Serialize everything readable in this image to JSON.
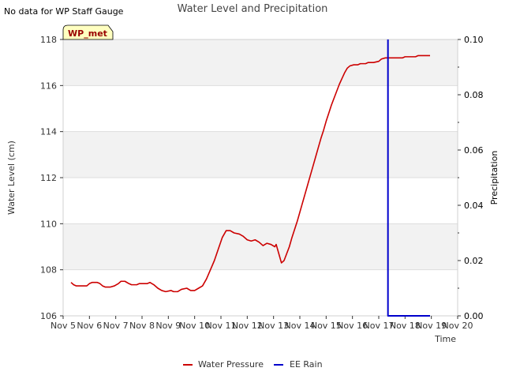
{
  "page_note": "No data for WP Staff Gauge",
  "chart_data": {
    "type": "line",
    "title": "Water Level and Precipitation",
    "xlabel": "Time",
    "ylabel_left": "Water Level (cm)",
    "ylabel_right": "Precipitation",
    "badge": "WP_met",
    "x_ticks": [
      "Nov 5",
      "Nov 6",
      "Nov 7",
      "Nov 8",
      "Nov 9",
      "Nov 10",
      "Nov 11",
      "Nov 12",
      "Nov 13",
      "Nov 14",
      "Nov 15",
      "Nov 16",
      "Nov 17",
      "Nov 18",
      "Nov 19",
      "Nov 20"
    ],
    "x_range": [
      5,
      20
    ],
    "y_left_range": [
      106,
      118
    ],
    "y_left_ticks": [
      "106",
      "108",
      "110",
      "112",
      "114",
      "116",
      "118"
    ],
    "y_right_range": [
      0.0,
      0.1
    ],
    "y_right_ticks": [
      "0.00",
      "0.02",
      "0.04",
      "0.06",
      "0.08",
      "0.10"
    ],
    "series": [
      {
        "name": "Water Pressure",
        "axis": "left",
        "color": "#cc0000",
        "points": [
          [
            5.3,
            107.45
          ],
          [
            5.4,
            107.35
          ],
          [
            5.5,
            107.3
          ],
          [
            5.7,
            107.3
          ],
          [
            5.9,
            107.3
          ],
          [
            6.0,
            107.4
          ],
          [
            6.1,
            107.45
          ],
          [
            6.3,
            107.45
          ],
          [
            6.4,
            107.4
          ],
          [
            6.5,
            107.3
          ],
          [
            6.6,
            107.25
          ],
          [
            6.8,
            107.25
          ],
          [
            6.95,
            107.3
          ],
          [
            7.1,
            107.4
          ],
          [
            7.2,
            107.5
          ],
          [
            7.35,
            107.5
          ],
          [
            7.5,
            107.4
          ],
          [
            7.6,
            107.35
          ],
          [
            7.8,
            107.35
          ],
          [
            7.9,
            107.4
          ],
          [
            8.0,
            107.4
          ],
          [
            8.2,
            107.4
          ],
          [
            8.3,
            107.45
          ],
          [
            8.45,
            107.35
          ],
          [
            8.6,
            107.2
          ],
          [
            8.75,
            107.1
          ],
          [
            8.9,
            107.05
          ],
          [
            9.1,
            107.1
          ],
          [
            9.2,
            107.05
          ],
          [
            9.35,
            107.05
          ],
          [
            9.5,
            107.15
          ],
          [
            9.7,
            107.2
          ],
          [
            9.85,
            107.1
          ],
          [
            10.0,
            107.1
          ],
          [
            10.15,
            107.2
          ],
          [
            10.3,
            107.3
          ],
          [
            10.45,
            107.6
          ],
          [
            10.6,
            108.0
          ],
          [
            10.75,
            108.4
          ],
          [
            10.9,
            108.9
          ],
          [
            11.05,
            109.4
          ],
          [
            11.2,
            109.7
          ],
          [
            11.35,
            109.7
          ],
          [
            11.5,
            109.6
          ],
          [
            11.7,
            109.55
          ],
          [
            11.85,
            109.45
          ],
          [
            12.0,
            109.3
          ],
          [
            12.15,
            109.25
          ],
          [
            12.3,
            109.3
          ],
          [
            12.45,
            109.2
          ],
          [
            12.6,
            109.05
          ],
          [
            12.75,
            109.15
          ],
          [
            12.9,
            109.1
          ],
          [
            13.05,
            109.0
          ],
          [
            13.1,
            109.1
          ],
          [
            13.2,
            108.7
          ],
          [
            13.3,
            108.3
          ],
          [
            13.4,
            108.4
          ],
          [
            13.5,
            108.7
          ],
          [
            13.6,
            109.0
          ],
          [
            13.7,
            109.4
          ],
          [
            13.8,
            109.75
          ],
          [
            13.9,
            110.1
          ],
          [
            14.0,
            110.5
          ],
          [
            14.1,
            110.9
          ],
          [
            14.2,
            111.3
          ],
          [
            14.3,
            111.7
          ],
          [
            14.4,
            112.1
          ],
          [
            14.5,
            112.5
          ],
          [
            14.6,
            112.9
          ],
          [
            14.7,
            113.3
          ],
          [
            14.8,
            113.7
          ],
          [
            14.9,
            114.05
          ],
          [
            15.0,
            114.45
          ],
          [
            15.1,
            114.8
          ],
          [
            15.2,
            115.15
          ],
          [
            15.3,
            115.45
          ],
          [
            15.4,
            115.75
          ],
          [
            15.5,
            116.05
          ],
          [
            15.6,
            116.3
          ],
          [
            15.7,
            116.55
          ],
          [
            15.8,
            116.75
          ],
          [
            15.9,
            116.85
          ],
          [
            16.05,
            116.9
          ],
          [
            16.2,
            116.9
          ],
          [
            16.3,
            116.95
          ],
          [
            16.5,
            116.95
          ],
          [
            16.6,
            117.0
          ],
          [
            16.8,
            117.0
          ],
          [
            17.0,
            117.05
          ],
          [
            17.1,
            117.15
          ],
          [
            17.25,
            117.2
          ],
          [
            17.5,
            117.2
          ],
          [
            17.75,
            117.2
          ],
          [
            17.9,
            117.2
          ],
          [
            18.0,
            117.25
          ],
          [
            18.2,
            117.25
          ],
          [
            18.4,
            117.25
          ],
          [
            18.5,
            117.3
          ],
          [
            18.7,
            117.3
          ],
          [
            18.95,
            117.3
          ]
        ]
      },
      {
        "name": "EE Rain",
        "axis": "right",
        "color": "#0000cc",
        "points": [
          [
            17.35,
            0.1
          ],
          [
            17.37,
            0.0
          ],
          [
            18.95,
            0.0
          ]
        ]
      }
    ],
    "legend": [
      "Water Pressure",
      "EE Rain"
    ],
    "legend_position": "bottom-center",
    "grid": "horizontal bands"
  }
}
